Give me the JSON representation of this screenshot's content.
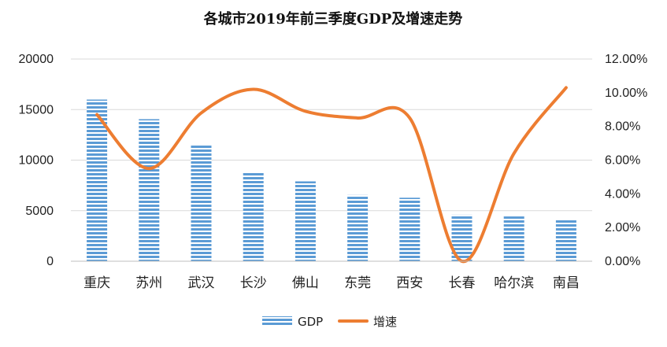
{
  "chart_data": {
    "type": "bar",
    "title": "各城市2019年前三季度GDP及增速走势",
    "categories": [
      "重庆",
      "苏州",
      "武汉",
      "长沙",
      "佛山",
      "东莞",
      "西安",
      "长春",
      "哈尔滨",
      "南昌"
    ],
    "series": [
      {
        "name": "GDP",
        "type": "bar",
        "axis": "left",
        "values": [
          15990,
          14050,
          11570,
          8780,
          7900,
          6550,
          6280,
          4600,
          4430,
          4080
        ]
      },
      {
        "name": "增速",
        "type": "line",
        "axis": "right",
        "values": [
          0.087,
          0.055,
          0.088,
          0.102,
          0.089,
          0.085,
          0.085,
          0.0,
          0.064,
          0.103
        ]
      }
    ],
    "ylim": [
      0,
      20000
    ],
    "yticks": [
      "0",
      "5000",
      "10000",
      "15000",
      "20000"
    ],
    "y2lim": [
      0,
      0.12
    ],
    "y2ticks": [
      "0.00%",
      "2.00%",
      "4.00%",
      "6.00%",
      "8.00%",
      "10.00%",
      "12.00%"
    ],
    "legend_position": "bottom",
    "grid": true,
    "colors": {
      "bar": "#5b9bd5",
      "bar_stripe": "#ffffff",
      "line": "#ed7d31",
      "grid": "#d9d9d9"
    }
  }
}
